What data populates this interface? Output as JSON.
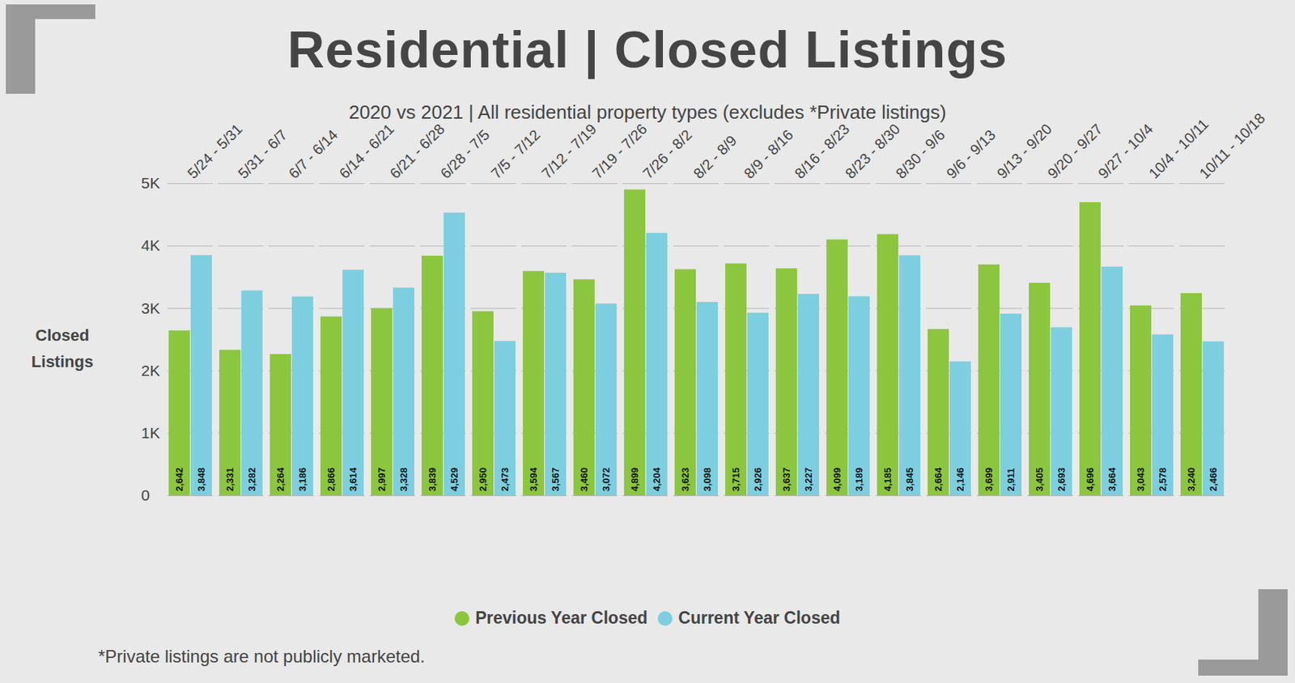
{
  "chart_data": {
    "type": "bar",
    "title": "Residential | Closed Listings",
    "subtitle": "2020 vs 2021 | All residential property types (excludes *Private listings)",
    "y_label": "Closed Listings",
    "caption": "*Private listings are not publicly marketed.",
    "categories": [
      "5/24 - 5/31",
      "5/31 - 6/7",
      "6/7 - 6/14",
      "6/14 - 6/21",
      "6/21 - 6/28",
      "6/28 - 7/5",
      "7/5 - 7/12",
      "7/12 - 7/19",
      "7/19 - 7/26",
      "7/26 - 8/2",
      "8/2 - 8/9",
      "8/9 - 8/16",
      "8/16 - 8/23",
      "8/23 - 8/30",
      "8/30 - 9/6",
      "9/6 - 9/13",
      "9/13 - 9/20",
      "9/20 - 9/27",
      "9/27 - 10/4",
      "10/4 - 10/11",
      "10/11 - 10/18"
    ],
    "series": [
      {
        "name": "Previous Year Closed",
        "color": "#8cc63f",
        "values": [
          2642,
          2331,
          2264,
          2866,
          2997,
          3839,
          2950,
          3594,
          3460,
          4899,
          3623,
          3715,
          3637,
          4099,
          4185,
          2664,
          3699,
          3405,
          4696,
          3043,
          3240
        ],
        "value_labels": [
          "2,642",
          "2,331",
          "2,264",
          "2,866",
          "2,997",
          "3,839",
          "2,950",
          "3,594",
          "3,460",
          "4,899",
          "3,623",
          "3,715",
          "3,637",
          "4,099",
          "4,185",
          "2,664",
          "3,699",
          "3,405",
          "4,696",
          "3,043",
          "3,240"
        ]
      },
      {
        "name": "Current Year Closed",
        "color": "#7dcfe0",
        "values": [
          3848,
          3282,
          3186,
          3614,
          3328,
          4529,
          2473,
          3567,
          3072,
          4204,
          3098,
          2926,
          3227,
          3189,
          3845,
          2146,
          2911,
          2693,
          3664,
          2578,
          2466
        ],
        "value_labels": [
          "3,848",
          "3,282",
          "3,186",
          "3,614",
          "3,328",
          "4,529",
          "2,473",
          "3,567",
          "3,072",
          "4,204",
          "3,098",
          "2,926",
          "3,227",
          "3,189",
          "3,845",
          "2,146",
          "2,911",
          "2,693",
          "3,664",
          "2,578",
          "2,466"
        ]
      }
    ],
    "ylim": [
      0,
      5000
    ],
    "yticks": [
      0,
      {
        "value": 1000,
        "label": "1K"
      },
      {
        "value": 2000,
        "label": "2K"
      },
      {
        "value": 3000,
        "label": "3K"
      },
      {
        "value": 4000,
        "label": "4K"
      },
      {
        "value": 5000,
        "label": "5K"
      }
    ],
    "grid": true,
    "legend": "bottom",
    "data_labels": true
  }
}
